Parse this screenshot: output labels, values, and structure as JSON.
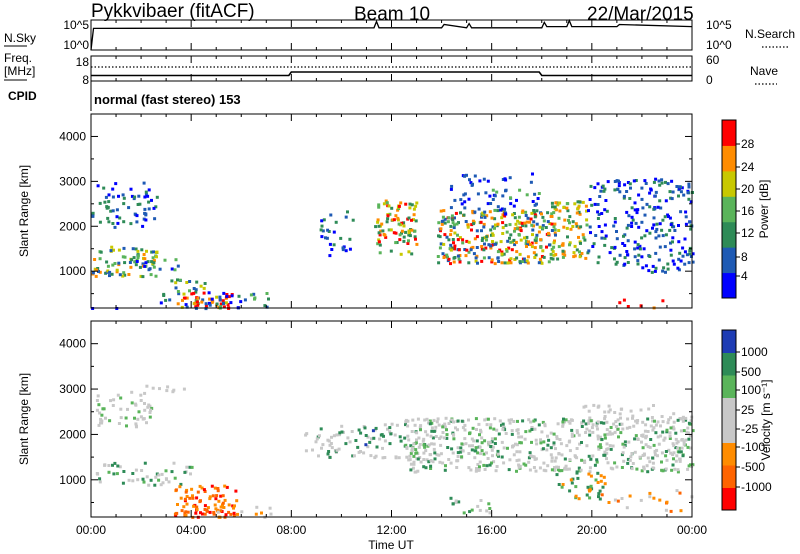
{
  "header": {
    "station": "Pykkvibaer (fitACF)",
    "beam": "Beam 10",
    "date": "22/Mar/2015"
  },
  "chart_data": [
    {
      "type": "line",
      "panel": "noise",
      "left_label": "N.Sky",
      "right_label": "N.Search",
      "left_ticks": [
        "10^5",
        "10^0"
      ],
      "right_ticks": [
        "10^5",
        "10^0"
      ],
      "x_hours": [
        0,
        0.1,
        11.3,
        11.4,
        11.5,
        14.0,
        14.1,
        15.0,
        15.1,
        15.2,
        18.0,
        18.1,
        18.2,
        19.0,
        19.1,
        19.2,
        21.0,
        21.1,
        24
      ],
      "y_level": [
        0.0,
        0.72,
        0.74,
        0.95,
        0.74,
        0.74,
        0.85,
        0.74,
        0.88,
        0.74,
        0.74,
        0.92,
        0.78,
        0.78,
        0.98,
        0.78,
        0.78,
        0.85,
        0.78
      ]
    },
    {
      "type": "line",
      "panel": "frequency",
      "left_label": "Freq. [MHz]",
      "right_label": "Nave",
      "left_ticks": [
        "18",
        "8"
      ],
      "right_ticks": [
        "60",
        "0"
      ],
      "freq_x": [
        0,
        7.9,
        8.0,
        17.9,
        18.0,
        24
      ],
      "freq_mhz": [
        10.2,
        10.2,
        11.6,
        11.6,
        10.2,
        10.2
      ],
      "nave_level": "constant",
      "cpid_label": "CPID",
      "cpid_value": "normal (fast stereo) 153"
    },
    {
      "type": "heatmap",
      "panel": "power",
      "xlabel": "",
      "ylabel": "Slant Range [km]",
      "y_ticks": [
        "1000",
        "2000",
        "3000",
        "4000"
      ],
      "ylim": [
        180,
        4500
      ],
      "colorbar_label": "Power [dB]",
      "colorbar_ticks": [
        "4",
        "8",
        "12",
        "16",
        "20",
        "24",
        "28"
      ],
      "colors": [
        "#0000ff",
        "#1e5ab4",
        "#2e8b57",
        "#5ab45a",
        "#c8c800",
        "#ff8c00",
        "#ff0000"
      ]
    },
    {
      "type": "heatmap",
      "panel": "velocity",
      "xlabel": "Time UT",
      "ylabel": "Slant Range [km]",
      "y_ticks": [
        "1000",
        "2000",
        "3000",
        "4000"
      ],
      "ylim": [
        180,
        4500
      ],
      "colorbar_label": "Velocity [m s^-1]",
      "colorbar_ticks": [
        "1000",
        "500",
        "100",
        "25",
        "-25",
        "-100",
        "-500",
        "-1000"
      ],
      "colors": [
        "#1e3cb4",
        "#2e8b57",
        "#5ab45a",
        "#c8c8c8",
        "#c8c8c8",
        "#ff8c00",
        "#ff6400",
        "#ff0000"
      ],
      "x_tick_labels": [
        "00:00",
        "04:00",
        "08:00",
        "12:00",
        "16:00",
        "20:00",
        "00:00"
      ]
    }
  ]
}
